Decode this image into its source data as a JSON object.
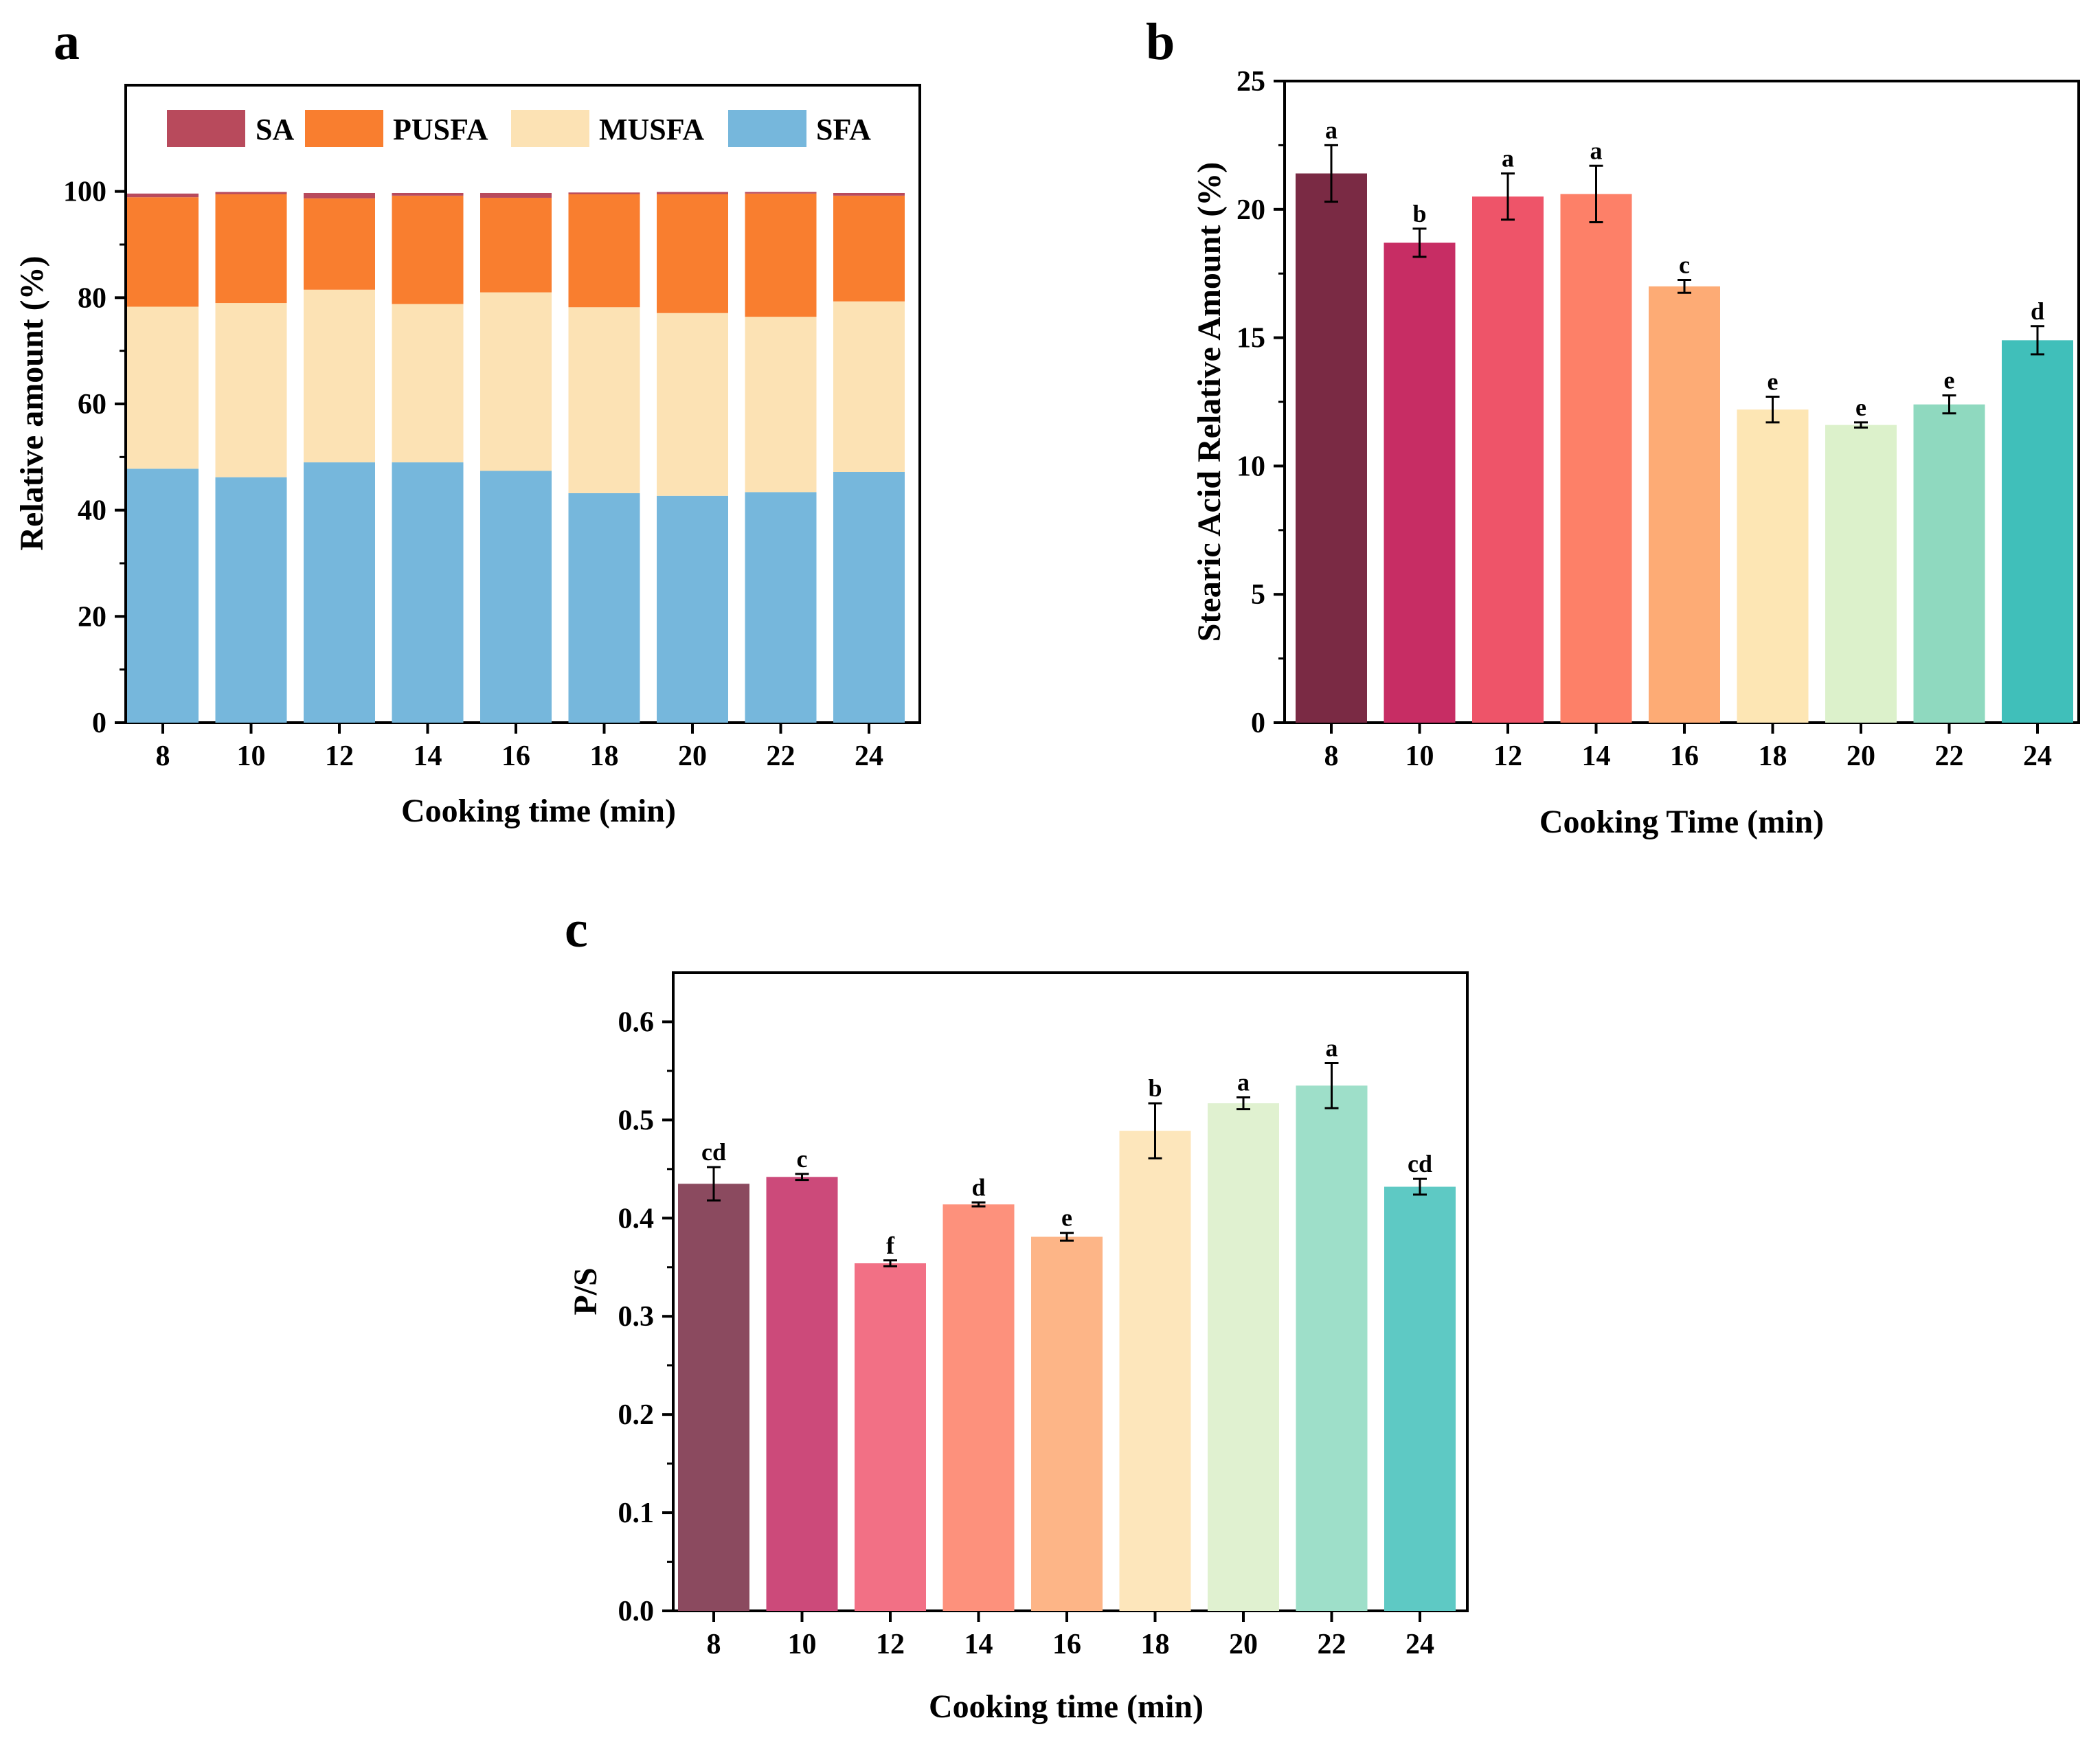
{
  "chart_data": [
    {
      "type": "bar",
      "stacked": true,
      "panel_label": "a",
      "categories": [
        "8",
        "10",
        "12",
        "14",
        "16",
        "18",
        "20",
        "22",
        "24"
      ],
      "series": [
        {
          "name": "SFA",
          "values": [
            47.8,
            46.2,
            49.0,
            49.0,
            47.4,
            43.2,
            42.7,
            43.4,
            47.2
          ]
        },
        {
          "name": "MUSFA",
          "values": [
            30.5,
            32.8,
            32.5,
            29.8,
            33.6,
            35.0,
            34.4,
            33.0,
            32.1
          ]
        },
        {
          "name": "PUSFA",
          "values": [
            20.6,
            20.5,
            17.2,
            20.4,
            17.8,
            21.3,
            22.4,
            23.2,
            19.9
          ]
        },
        {
          "name": "SA",
          "values": [
            0.7,
            0.4,
            1.0,
            0.5,
            0.9,
            0.3,
            0.4,
            0.3,
            0.5
          ]
        }
      ],
      "legend": [
        "SA",
        "PUSFA",
        "MUSFA",
        "SFA"
      ],
      "colors": {
        "SFA": "#76b7dc",
        "MUSFA": "#fce2b4",
        "PUSFA": "#f97e2f",
        "SA": "#b84a5c"
      },
      "xlabel": "Cooking time (min)",
      "ylabel": "Relative amount (%)",
      "ylim": [
        0,
        120
      ],
      "yticks": [
        "0",
        "20",
        "40",
        "60",
        "80",
        "100"
      ],
      "legend_position": "top"
    },
    {
      "type": "bar",
      "panel_label": "b",
      "categories": [
        "8",
        "10",
        "12",
        "14",
        "16",
        "18",
        "20",
        "22",
        "24"
      ],
      "values": [
        21.4,
        18.7,
        20.5,
        20.6,
        17.0,
        12.2,
        11.6,
        12.4,
        14.9
      ],
      "errors": [
        1.1,
        0.55,
        0.9,
        1.1,
        0.25,
        0.5,
        0.1,
        0.35,
        0.55
      ],
      "labels": [
        "a",
        "b",
        "a",
        "a",
        "c",
        "e",
        "e",
        "e",
        "d"
      ],
      "colors": [
        "#7a2a44",
        "#c72d64",
        "#ee5469",
        "#fd8068",
        "#fdab75",
        "#fde6b4",
        "#dcf1cb",
        "#8fd9bf",
        "#40bfba"
      ],
      "xlabel": "Cooking Time (min)",
      "ylabel": "Stearic Acid Relative Amount (%)",
      "ylim": [
        0,
        25
      ],
      "yticks": [
        "0",
        "5",
        "10",
        "15",
        "20",
        "25"
      ]
    },
    {
      "type": "bar",
      "panel_label": "c",
      "categories": [
        "8",
        "10",
        "12",
        "14",
        "16",
        "18",
        "20",
        "22",
        "24"
      ],
      "values": [
        0.435,
        0.442,
        0.354,
        0.414,
        0.381,
        0.489,
        0.517,
        0.535,
        0.432
      ],
      "errors": [
        0.017,
        0.003,
        0.003,
        0.002,
        0.004,
        0.028,
        0.006,
        0.023,
        0.008
      ],
      "labels": [
        "cd",
        "c",
        "f",
        "d",
        "e",
        "b",
        "a",
        "a",
        "cd"
      ],
      "colors": [
        "#8b4a5f",
        "#cc4a7a",
        "#f27085",
        "#fd917c",
        "#fdb587",
        "#fde6bb",
        "#e0f1d0",
        "#9edfc9",
        "#5ec9c4"
      ],
      "xlabel": "Cooking time (min)",
      "ylabel": "P/S",
      "ylim": [
        0,
        0.65
      ],
      "yticks": [
        "0.0",
        "0.1",
        "0.2",
        "0.3",
        "0.4",
        "0.5",
        "0.6"
      ]
    }
  ]
}
